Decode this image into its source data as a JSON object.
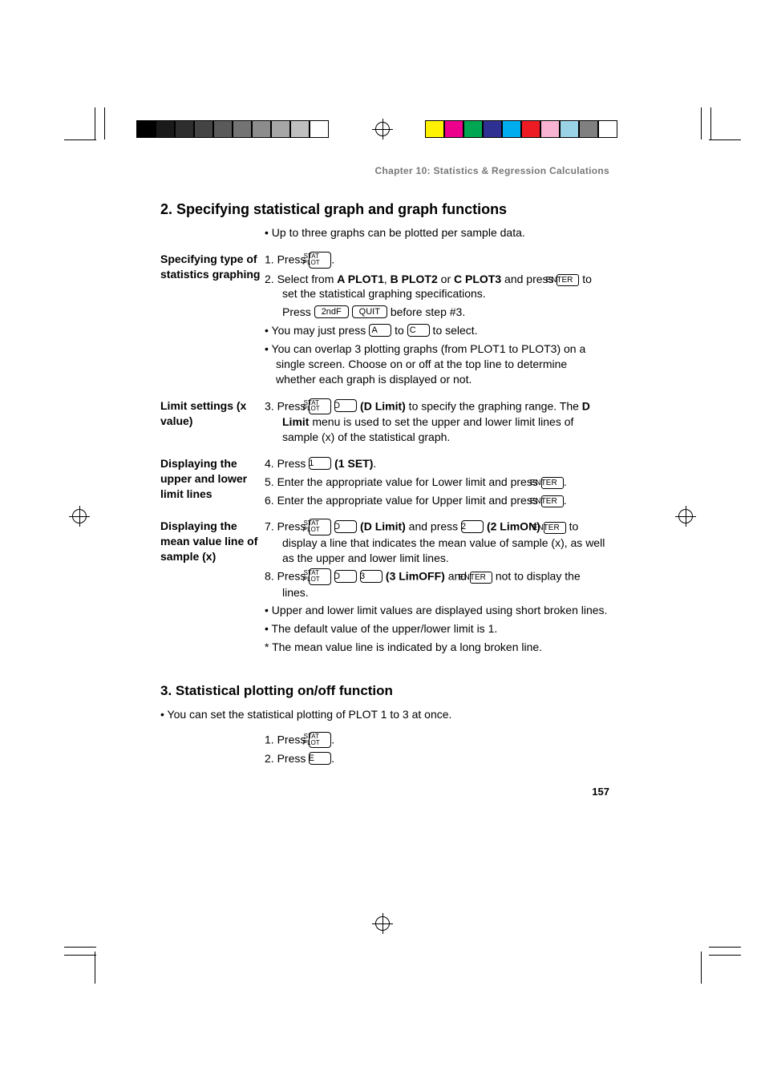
{
  "swatches_left": [
    "#000000",
    "#1a1a1a",
    "#2e2e2e",
    "#444444",
    "#5a5a5a",
    "#737373",
    "#8c8c8c",
    "#a6a6a6",
    "#bfbfbf",
    "#ffffff"
  ],
  "swatches_right": [
    "#fff200",
    "#ec008c",
    "#00a651",
    "#2e3192",
    "#00aeef",
    "#ed1c24",
    "#f7b3d1",
    "#9bd3e6",
    "#808080",
    "#ffffff"
  ],
  "chapter": "Chapter 10: Statistics & Regression Calculations",
  "page_number": "157",
  "keys": {
    "stat_plot_l1": "STAT",
    "stat_plot_l2": "PLOT",
    "enter": "ENTER",
    "2ndf": "2ndF",
    "quit": "QUIT",
    "A": "A",
    "C": "C",
    "D": "D",
    "E": "E",
    "k1": "1",
    "k2": "2",
    "k3": "3"
  },
  "s2": {
    "title": "2. Specifying statistical graph and graph functions",
    "intro": "• Up to three graphs can be plotted per sample data.",
    "b1_side": "Specifying type of statistics graphing",
    "b1_1a": "1.  Press ",
    "b1_1b": ".",
    "b1_2a": "2.  Select from ",
    "b1_2_ap1": "A PLOT1",
    "b1_2_mid1": ", ",
    "b1_2_bp2": "B PLOT2",
    "b1_2_mid2": " or ",
    "b1_2_cp3": "C PLOT3",
    "b1_2b": " and press ",
    "b1_2c": " to set the statistical graphing specifications.",
    "b1_sub_a": "Press ",
    "b1_sub_b": " before step #3.",
    "b1_bul1a": "• You may just press ",
    "b1_bul1b": " to ",
    "b1_bul1c": " to select.",
    "b1_bul2": "• You can overlap 3 plotting graphs (from PLOT1 to PLOT3) on a single screen. Choose on or off at the top line to determine whether each graph is displayed or not.",
    "b2_side": "Limit settings (x value)",
    "b2_3a": "3.  Press ",
    "b2_3_lab": "(D Limit)",
    "b2_3b": " to specify the graphing range. The ",
    "b2_3_dl": "D Limit",
    "b2_3c": " menu is used to set the upper and lower limit lines of sample (x) of the statistical graph.",
    "b3_side": "Displaying the upper and lower limit lines",
    "b3_4a": "4.  Press ",
    "b3_4_lab": "(1 SET)",
    "b3_4b": ".",
    "b3_5a": "5.  Enter the appropriate value for Lower limit and press ",
    "b3_5b": ".",
    "b3_6a": "6.  Enter the appropriate value for Upper limit and press ",
    "b3_6b": ".",
    "b4_side": "Displaying the mean value line of sample (x)",
    "b4_7a": "7.  Press ",
    "b4_7_lab1": "(D Limit)",
    "b4_7b": " and press ",
    "b4_7_lab2": "(2 LimON)",
    "b4_7c": " ",
    "b4_7d": " to display a line that indicates the mean value of sample (x), as well as the upper and lower limit lines.",
    "b4_8a": "8.  Press ",
    "b4_8_lab": "(3 LimOFF)",
    "b4_8b": " and ",
    "b4_8c": " not to display the lines.",
    "b4_bul1": "• Upper and lower limit values are displayed using short broken lines.",
    "b4_bul2": "• The default value of the upper/lower limit is 1.",
    "b4_star": "* The mean value line is indicated by a long broken line."
  },
  "s3": {
    "title": "3. Statistical plotting on/off function",
    "intro": "• You can set the statistical plotting of PLOT 1 to 3 at once.",
    "l1a": "1.  Press ",
    "l1b": ".",
    "l2a": "2.  Press ",
    "l2b": "."
  }
}
